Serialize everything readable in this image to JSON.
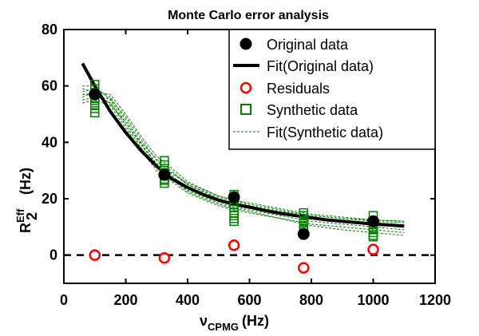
{
  "chart_data": {
    "type": "scatter",
    "title": "Monte Carlo error analysis",
    "xlabel": {
      "main": "ν",
      "sub": "CPMG",
      "unit": "(Hz)"
    },
    "ylabel": {
      "main": "R",
      "sub": "2",
      "sup": "Eff",
      "unit": "(Hz)"
    },
    "xlim": [
      0,
      1200
    ],
    "ylim": [
      -10,
      80
    ],
    "xticks": [
      0,
      200,
      400,
      600,
      800,
      1000,
      1200
    ],
    "yticks": [
      0,
      20,
      40,
      60,
      80
    ],
    "legend_position": "top-right",
    "colors": {
      "original": "#000000",
      "residual": "#ff0000",
      "synthetic": "#008000"
    },
    "series": [
      {
        "name": "Original data",
        "marker": "filled-circle",
        "x": [
          100,
          325,
          550,
          775,
          1000
        ],
        "y": [
          57,
          28.5,
          20.5,
          7.5,
          12
        ]
      },
      {
        "name": "Fit(Original data)",
        "line": "solid-thick",
        "x": [
          60,
          100,
          150,
          200,
          250,
          300,
          350,
          400,
          450,
          500,
          550,
          600,
          650,
          700,
          750,
          800,
          850,
          900,
          950,
          1000,
          1050,
          1100
        ],
        "y": [
          68,
          60,
          51,
          43.5,
          37,
          31.5,
          27,
          24,
          21.5,
          19.5,
          18,
          17,
          15.8,
          14.8,
          14,
          13.2,
          12.5,
          12,
          11.5,
          11,
          10.7,
          10.3
        ]
      },
      {
        "name": "Residuals",
        "marker": "open-circle",
        "x": [
          100,
          325,
          550,
          775,
          1000
        ],
        "y": [
          0,
          -1,
          3.5,
          -4.5,
          2
        ]
      },
      {
        "name": "Synthetic data",
        "marker": "open-square",
        "x": [
          100,
          100,
          100,
          100,
          100,
          100,
          100,
          100,
          325,
          325,
          325,
          325,
          325,
          325,
          325,
          325,
          550,
          550,
          550,
          550,
          550,
          550,
          550,
          550,
          775,
          775,
          775,
          775,
          775,
          775,
          775,
          775,
          1000,
          1000,
          1000,
          1000,
          1000,
          1000,
          1000,
          1000
        ],
        "y": [
          60.5,
          59,
          57,
          55.5,
          54,
          53,
          52,
          50.5,
          33.5,
          32,
          30,
          29,
          28,
          27,
          26.5,
          25.5,
          21.5,
          19,
          18,
          17,
          15,
          14,
          13,
          12,
          15,
          14,
          13,
          12,
          11.5,
          10.5,
          9.5,
          8.5,
          14,
          12,
          11,
          10,
          9,
          8,
          7,
          6.5
        ]
      },
      {
        "name": "Fit(Synthetic data)",
        "line": "dashed",
        "curves": [
          {
            "x": [
              60,
              100,
              150,
              200,
              250,
              300,
              325,
              400,
              500,
              550,
              600,
              700,
              775,
              800,
              900,
              1000,
              1100
            ],
            "y": [
              58,
              59,
              56,
              48,
              40,
              34,
              32,
              25,
              20.5,
              19,
              17.5,
              15.5,
              14.5,
              14,
              13,
              12,
              11.5
            ]
          },
          {
            "x": [
              60,
              100,
              150,
              200,
              250,
              300,
              325,
              400,
              500,
              550,
              600,
              700,
              775,
              800,
              900,
              1000,
              1100
            ],
            "y": [
              56,
              58,
              57,
              50,
              42,
              35,
              33,
              26,
              21,
              19.5,
              18,
              16,
              14.5,
              14,
              13,
              12.5,
              12
            ]
          },
          {
            "x": [
              60,
              100,
              150,
              200,
              250,
              300,
              325,
              400,
              500,
              550,
              600,
              700,
              775,
              800,
              900,
              1000,
              1100
            ],
            "y": [
              60,
              60,
              55,
              47,
              39,
              32,
              30,
              24,
              19.5,
              18,
              17,
              15,
              13.5,
              13,
              12,
              11,
              10
            ]
          },
          {
            "x": [
              60,
              100,
              150,
              200,
              250,
              300,
              325,
              400,
              500,
              550,
              600,
              700,
              775,
              800,
              900,
              1000,
              1100
            ],
            "y": [
              57,
              57,
              54,
              46,
              38,
              31,
              29,
              23,
              18.5,
              17,
              16,
              14,
              12.5,
              12,
              11,
              10,
              9
            ]
          },
          {
            "x": [
              60,
              100,
              150,
              200,
              250,
              300,
              325,
              400,
              500,
              550,
              600,
              700,
              775,
              800,
              900,
              1000,
              1100
            ],
            "y": [
              55,
              56,
              55.5,
              49,
              41,
              33.5,
              31,
              25,
              20,
              18.5,
              17,
              15,
              13.5,
              13,
              12,
              11,
              10.5
            ]
          },
          {
            "x": [
              60,
              100,
              150,
              200,
              250,
              300,
              325,
              400,
              500,
              550,
              600,
              700,
              775,
              800,
              900,
              1000,
              1100
            ],
            "y": [
              54,
              55,
              53,
              45,
              37,
              30,
              28,
              22,
              17.5,
              16,
              15,
              13,
              11.5,
              11,
              10,
              9,
              8
            ]
          },
          {
            "x": [
              60,
              100,
              150,
              200,
              250,
              300,
              325,
              400,
              500,
              550,
              600,
              700,
              775,
              800,
              900,
              1000,
              1100
            ],
            "y": [
              59,
              58,
              53.5,
              47,
              39.5,
              32.5,
              30.5,
              25.5,
              21,
              19.5,
              18.5,
              16.5,
              15,
              14.5,
              13.5,
              12.5,
              12
            ]
          },
          {
            "x": [
              60,
              100,
              150,
              200,
              250,
              300,
              325,
              400,
              500,
              550,
              600,
              700,
              775,
              800,
              900,
              1000,
              1100
            ],
            "y": [
              57,
              57,
              54,
              46,
              38,
              31,
              29,
              22.5,
              18,
              16.5,
              15.5,
              13,
              11,
              10.5,
              9,
              8,
              7
            ]
          }
        ]
      }
    ],
    "reference_line": {
      "y": 0,
      "style": "dashed"
    },
    "legend": [
      "Original data",
      "Fit(Original data)",
      "Residuals",
      "Synthetic data",
      "Fit(Synthetic data)"
    ]
  }
}
